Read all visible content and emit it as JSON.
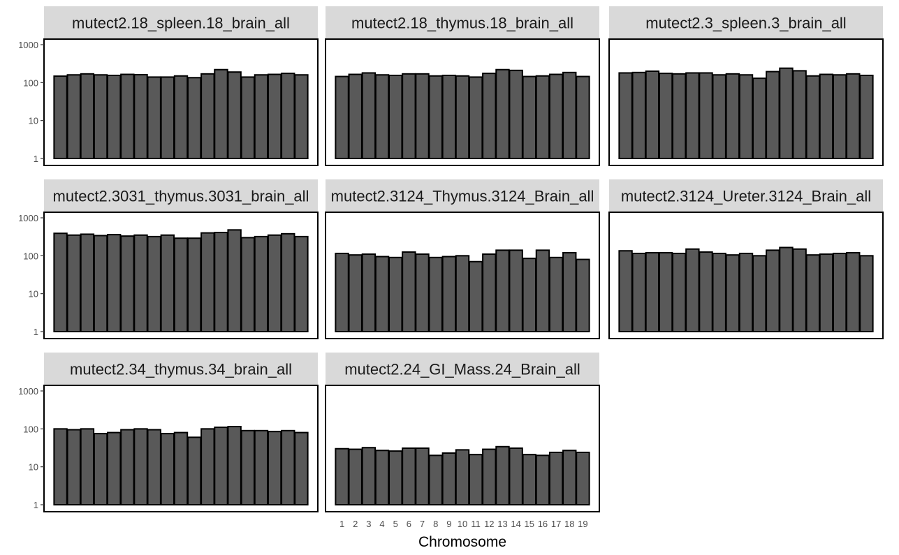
{
  "chart_data": {
    "type": "bar",
    "layout": "faceted small multiples, 3 columns",
    "yscale": "log10",
    "ylim": [
      1,
      1000
    ],
    "yticks": [
      1,
      10,
      100,
      1000
    ],
    "ytick_labels": [
      "1",
      "10",
      "100",
      "1000"
    ],
    "xlabel": "Chromosome",
    "ylabel": "",
    "categories": [
      "1",
      "2",
      "3",
      "4",
      "5",
      "6",
      "7",
      "8",
      "9",
      "10",
      "11",
      "12",
      "13",
      "14",
      "15",
      "16",
      "17",
      "18",
      "19"
    ],
    "bar_color": "#595959",
    "strip_color": "#d9d9d9",
    "facets": [
      {
        "name": "mutect2.18_spleen.18_brain_all",
        "values": [
          148,
          160,
          170,
          160,
          155,
          165,
          162,
          140,
          140,
          150,
          135,
          170,
          220,
          190,
          140,
          160,
          165,
          175,
          160
        ]
      },
      {
        "name": "mutect2.18_thymus.18_brain_all",
        "values": [
          145,
          165,
          180,
          160,
          155,
          170,
          170,
          150,
          155,
          150,
          140,
          175,
          220,
          210,
          145,
          150,
          165,
          185,
          145
        ]
      },
      {
        "name": "mutect2.3_spleen.3_brain_all",
        "values": [
          180,
          185,
          200,
          175,
          170,
          180,
          180,
          160,
          170,
          160,
          130,
          195,
          240,
          205,
          150,
          165,
          160,
          170,
          155
        ]
      },
      {
        "name": "mutect2.3031_thymus.3031_brain_all",
        "values": [
          390,
          350,
          370,
          340,
          360,
          330,
          350,
          320,
          350,
          290,
          290,
          400,
          410,
          480,
          300,
          320,
          350,
          380,
          320
        ]
      },
      {
        "name": "mutect2.3124_Thymus.3124_Brain_all",
        "values": [
          115,
          105,
          110,
          95,
          90,
          125,
          110,
          90,
          95,
          100,
          70,
          110,
          140,
          140,
          85,
          140,
          90,
          120,
          80
        ]
      },
      {
        "name": "mutect2.3124_Ureter.3124_Brain_all",
        "values": [
          135,
          115,
          120,
          120,
          115,
          150,
          125,
          115,
          105,
          115,
          100,
          140,
          165,
          150,
          105,
          110,
          115,
          120,
          100
        ]
      },
      {
        "name": "mutect2.34_thymus.34_brain_all",
        "values": [
          100,
          95,
          100,
          75,
          80,
          95,
          100,
          95,
          75,
          80,
          60,
          100,
          110,
          115,
          90,
          90,
          85,
          90,
          80
        ]
      },
      {
        "name": "mutect2.24_GI_Mass.24_Brain_all",
        "values": [
          30,
          29,
          32,
          27,
          26,
          31,
          31,
          20,
          23,
          28,
          21,
          29,
          34,
          31,
          21,
          20,
          24,
          27,
          24
        ]
      }
    ]
  }
}
